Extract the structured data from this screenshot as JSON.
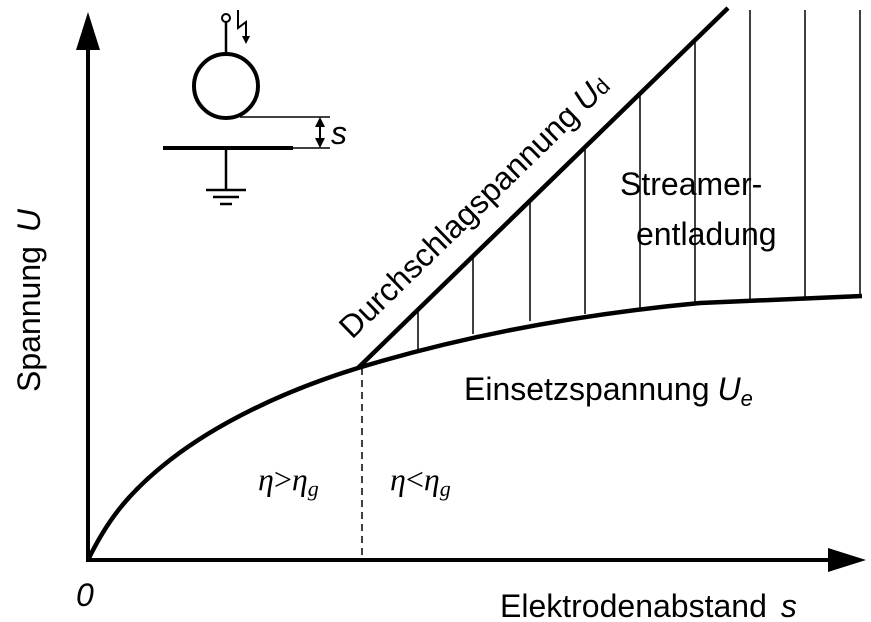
{
  "axes": {
    "y_label": {
      "text": "Spannung",
      "symbol": "U"
    },
    "x_label": {
      "text": "Elektrodenabstand",
      "symbol": "s"
    },
    "origin": "0"
  },
  "curves": {
    "breakdown": {
      "text": "Durchschlagspannung",
      "symbol": "U",
      "subscript": "d"
    },
    "inception": {
      "text": "Einsetzspannung",
      "symbol": "U",
      "subscript": "e"
    }
  },
  "region": {
    "line1": "Streamer-",
    "line2": "entladung"
  },
  "conditions": {
    "left": {
      "symbol": "η",
      "op": ">",
      "symbol2": "η",
      "subscript": "g"
    },
    "right": {
      "symbol": "η",
      "op": "<",
      "symbol2": "η",
      "subscript": "g"
    }
  },
  "inset": {
    "gap_label": "s"
  }
}
